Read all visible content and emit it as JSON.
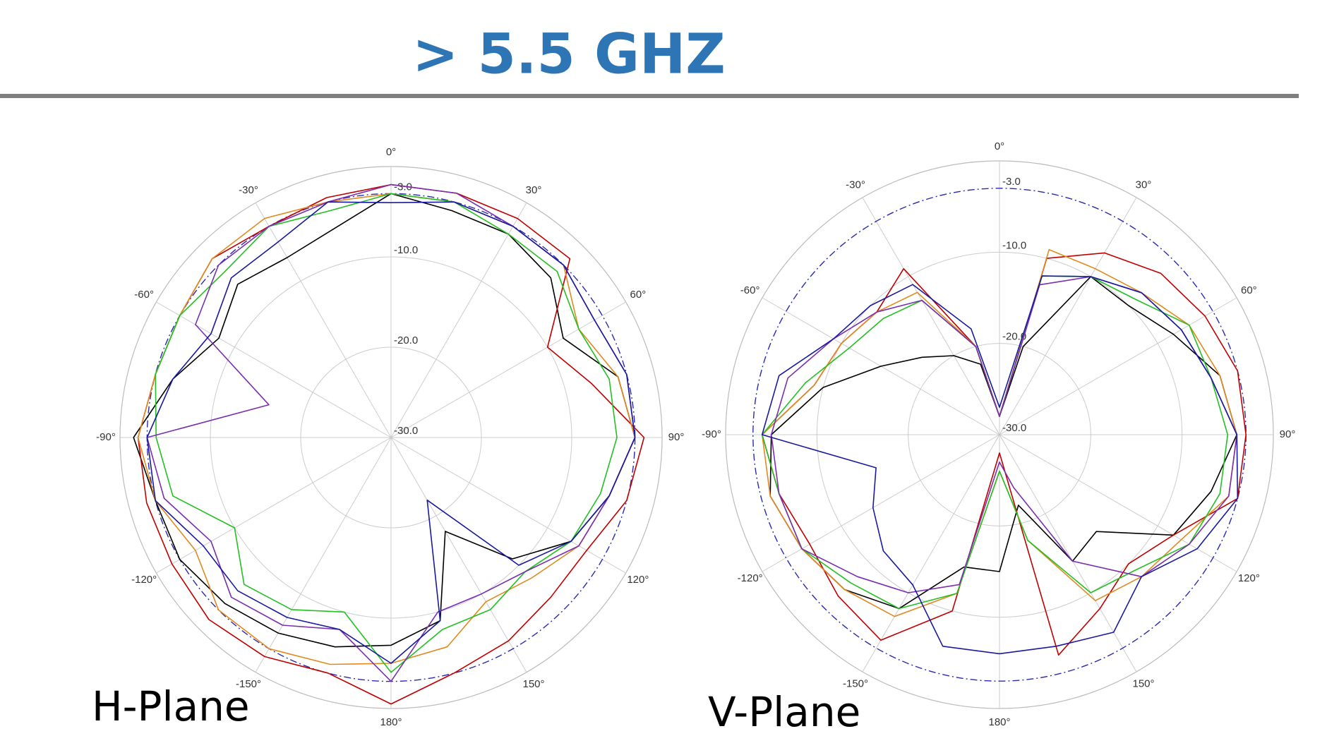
{
  "title": "> 5.5 GHZ",
  "chart_data": [
    {
      "type": "polar",
      "title": "H-Plane",
      "x": [
        -165,
        -150,
        -135,
        -120,
        -105,
        -90,
        -75,
        -60,
        -45,
        -30,
        -15,
        0,
        15,
        30,
        45,
        60,
        75,
        90,
        105,
        120,
        135,
        150,
        165,
        180
      ],
      "rlim": [
        -30,
        0
      ],
      "rticks": [
        {
          "value": -30,
          "label": "-30.0"
        },
        {
          "value": -20,
          "label": "-20.0"
        },
        {
          "value": -10,
          "label": "-10.0"
        },
        {
          "value": -3,
          "label": "-3.0"
        }
      ],
      "thetaticks": [
        {
          "value": -150,
          "label": "-150°"
        },
        {
          "value": -120,
          "label": "-120°"
        },
        {
          "value": -90,
          "label": "-90°"
        },
        {
          "value": -60,
          "label": "-60°"
        },
        {
          "value": -30,
          "label": "-30°"
        },
        {
          "value": 0,
          "label": "0°"
        },
        {
          "value": 30,
          "label": "30°"
        },
        {
          "value": 60,
          "label": "60°"
        },
        {
          "value": 90,
          "label": "90°"
        },
        {
          "value": 120,
          "label": "120°"
        },
        {
          "value": 150,
          "label": "150°"
        },
        {
          "value": 180,
          "label": "180°"
        }
      ],
      "series": [
        {
          "color": "#000000",
          "values": [
            -6,
            -5,
            -4,
            -3,
            -3,
            -1.5,
            -5,
            -8,
            -6,
            -7,
            -6,
            -3,
            -4,
            -4,
            -5,
            -8,
            -4,
            -3,
            -5,
            -7,
            -11,
            -18,
            -9,
            -7
          ]
        },
        {
          "color": "#c00000",
          "values": [
            -3,
            -2,
            -1.5,
            -2,
            -2,
            -2,
            -3,
            -3,
            -2,
            -3,
            -2.5,
            -2,
            -2,
            -2,
            -2,
            -10,
            -7,
            -2,
            -3,
            -5,
            -5,
            -4,
            -3,
            -0.5
          ]
        },
        {
          "color": "#e08a20",
          "values": [
            -4,
            -3,
            -3,
            -5,
            -3,
            -2,
            -3,
            -3,
            -2,
            -2,
            -3,
            -3,
            -3,
            -3,
            -3,
            -6,
            -4,
            -3,
            -5,
            -6,
            -8,
            -9,
            -6,
            -5
          ]
        },
        {
          "color": "#22c022",
          "values": [
            -10,
            -8,
            -7,
            -10,
            -5,
            -4,
            -3,
            -3,
            -4,
            -3,
            -4,
            -3,
            -3,
            -4,
            -4,
            -6,
            -5,
            -5,
            -6,
            -7,
            -9,
            -8,
            -8,
            -4
          ]
        },
        {
          "color": "#7a2fb0",
          "values": [
            -8,
            -6,
            -5,
            -7,
            -4,
            -3,
            -16,
            -5,
            -3,
            -3,
            -3,
            -2,
            -2,
            -3,
            -3,
            -4,
            -3,
            -3,
            -5,
            -6,
            -9,
            -10,
            -10,
            -3
          ]
        },
        {
          "color": "#1a1aa0",
          "values": [
            -8,
            -7,
            -6,
            -6,
            -3,
            -3,
            -5,
            -7,
            -5,
            -5,
            -3,
            -4,
            -3,
            -3,
            -3,
            -4,
            -3,
            -3,
            -5,
            -7,
            -10,
            -22,
            -9,
            -5
          ]
        }
      ]
    },
    {
      "type": "polar",
      "title": "V-Plane",
      "x": [
        -165,
        -150,
        -135,
        -120,
        -105,
        -90,
        -75,
        -60,
        -45,
        -30,
        -15,
        0,
        15,
        30,
        45,
        60,
        75,
        90,
        105,
        120,
        135,
        150,
        165,
        180
      ],
      "rlim": [
        -30,
        0
      ],
      "rticks": [
        {
          "value": -30,
          "label": "-30.0"
        },
        {
          "value": -20,
          "label": "-20.0"
        },
        {
          "value": -10,
          "label": "-10.0"
        },
        {
          "value": -3,
          "label": "-3.0"
        }
      ],
      "thetaticks": [
        {
          "value": -150,
          "label": "-150°"
        },
        {
          "value": -120,
          "label": "-120°"
        },
        {
          "value": -90,
          "label": "-90°"
        },
        {
          "value": -60,
          "label": "-60°"
        },
        {
          "value": -30,
          "label": "-30°"
        },
        {
          "value": 0,
          "label": "0°"
        },
        {
          "value": 30,
          "label": "30°"
        },
        {
          "value": 60,
          "label": "60°"
        },
        {
          "value": 90,
          "label": "90°"
        },
        {
          "value": 120,
          "label": "120°"
        },
        {
          "value": 150,
          "label": "150°"
        },
        {
          "value": 180,
          "label": "180°"
        }
      ],
      "series": [
        {
          "color": "#000000",
          "values": [
            -15,
            -8,
            -6,
            -5,
            -4,
            -5,
            -10,
            -15,
            -18,
            -20,
            -22,
            -28,
            -20,
            -10,
            -10,
            -8,
            -5,
            -4,
            -6,
            -8,
            -15,
            -14,
            -22,
            -15
          ]
        },
        {
          "color": "#c00000",
          "values": [
            -10,
            -4,
            -5,
            -6,
            -5,
            -4,
            -9,
            -10,
            -11,
            -9,
            -20,
            -28,
            -10,
            -7,
            -5,
            -4,
            -3,
            -3,
            -3,
            -8,
            -10,
            -8,
            -5,
            -28
          ]
        },
        {
          "color": "#e08a20",
          "values": [
            -12,
            -7,
            -6,
            -5,
            -4,
            -4,
            -9,
            -10,
            -11,
            -12,
            -20,
            -28,
            -9,
            -9,
            -8,
            -6,
            -5,
            -4,
            -4,
            -7,
            -8,
            -9,
            -18,
            -26
          ]
        },
        {
          "color": "#22c022",
          "values": [
            -12,
            -8,
            -7,
            -5,
            -5,
            -4,
            -8,
            -11,
            -12,
            -13,
            -20,
            -28,
            -12,
            -10,
            -9,
            -6,
            -6,
            -5,
            -5,
            -6,
            -9,
            -10,
            -18,
            -26
          ]
        },
        {
          "color": "#7a2fb0",
          "values": [
            -13,
            -10,
            -8,
            -5,
            -5,
            -5,
            -6,
            -9,
            -11,
            -13,
            -20,
            -28,
            -13,
            -10,
            -8,
            -7,
            -6,
            -4,
            -4,
            -6,
            -8,
            -14,
            -24,
            -27
          ]
        },
        {
          "color": "#1a1aa0",
          "values": [
            -6,
            -11,
            -12,
            -14,
            -16,
            -4,
            -5,
            -9,
            -10,
            -11,
            -18,
            -27,
            -12,
            -10,
            -8,
            -7,
            -6,
            -4,
            -3,
            -5,
            -8,
            -5,
            -6,
            -6
          ]
        }
      ]
    }
  ]
}
